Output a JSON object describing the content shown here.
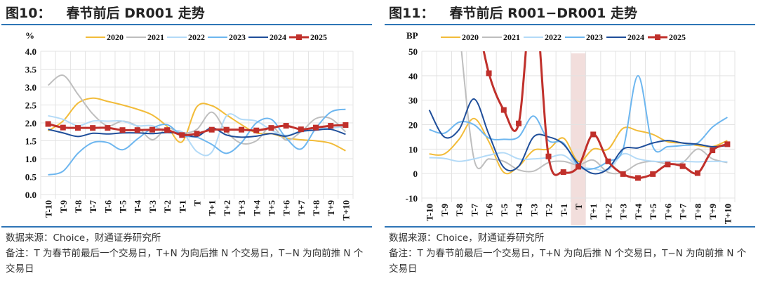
{
  "source": "数据来源：Choice，财通证券研究所",
  "note": "备注：T 为春节前最后一个交易日，T+N 为向后推 N 个交易日，T−N 为向前推 N 个交易日",
  "colors": {
    "2020": "#F2BC3A",
    "2021": "#BEBEBE",
    "2022": "#B3DAF7",
    "2023": "#6DB6EF",
    "2024": "#1F4E9A",
    "2025": "#C0302B",
    "rule": "#2E75B6",
    "highlight": "#F2DEDC"
  },
  "chart_data": [
    {
      "type": "line",
      "fig": "图10：",
      "title": "春节前后 DR001 走势",
      "ylabel": "%",
      "ylim": [
        0,
        4
      ],
      "yticks": [
        0,
        0.5,
        1,
        1.5,
        2,
        2.5,
        3,
        3.5,
        4
      ],
      "ytick_labels": [
        "0.0",
        "0.5",
        "1.0",
        "1.5",
        "2.0",
        "2.5",
        "3.0",
        "3.5",
        "4.0"
      ],
      "grid": true,
      "legend": "top",
      "categories": [
        "T-10",
        "T-9",
        "T-8",
        "T-7",
        "T-6",
        "T-5",
        "T-4",
        "T-3",
        "T-2",
        "T-1",
        "T",
        "T+1",
        "T+2",
        "T+3",
        "T+4",
        "T+5",
        "T+6",
        "T+7",
        "T+8",
        "T+9",
        "T+10"
      ],
      "series": [
        {
          "name": "2020",
          "values": [
            1.78,
            2.05,
            2.55,
            2.69,
            2.6,
            2.5,
            2.38,
            2.22,
            1.9,
            1.47,
            2.45,
            2.48,
            2.22,
            1.95,
            1.72,
            1.7,
            1.58,
            1.53,
            1.5,
            1.43,
            1.22
          ]
        },
        {
          "name": "2021",
          "values": [
            3.05,
            3.33,
            2.8,
            2.25,
            1.92,
            2.05,
            1.9,
            1.53,
            1.85,
            1.72,
            1.82,
            2.3,
            1.75,
            1.43,
            1.5,
            1.9,
            1.52,
            1.75,
            2.12,
            2.12,
            1.75
          ]
        },
        {
          "name": "2022",
          "values": [
            2.2,
            2.1,
            1.92,
            2.05,
            2.05,
            2.05,
            1.92,
            1.92,
            1.75,
            1.75,
            1.2,
            1.18,
            2.2,
            2.1,
            2.05,
            1.8,
            1.65,
            1.78,
            1.85,
            1.85,
            1.92
          ]
        },
        {
          "name": "2023",
          "values": [
            0.55,
            0.65,
            1.15,
            1.45,
            1.45,
            1.25,
            1.55,
            1.85,
            1.95,
            1.65,
            1.6,
            1.4,
            1.15,
            1.45,
            2.0,
            2.1,
            1.58,
            1.27,
            1.85,
            2.3,
            2.38
          ]
        },
        {
          "name": "2024",
          "values": [
            1.82,
            1.72,
            1.62,
            1.71,
            1.69,
            1.72,
            1.72,
            1.7,
            1.73,
            1.7,
            1.62,
            1.86,
            1.66,
            1.6,
            1.63,
            1.7,
            1.63,
            1.76,
            1.8,
            1.82,
            1.68
          ]
        },
        {
          "name": "2025",
          "markers": true,
          "values": [
            1.97,
            1.87,
            1.86,
            1.86,
            1.86,
            1.8,
            1.8,
            1.81,
            1.8,
            1.66,
            1.7,
            1.81,
            1.81,
            1.81,
            1.79,
            1.86,
            1.92,
            1.82,
            1.87,
            1.92,
            1.94
          ]
        }
      ]
    },
    {
      "type": "line",
      "fig": "图11：",
      "title": "春节前后 R001−DR001 走势",
      "ylabel": "BP",
      "ylim": [
        -10,
        50
      ],
      "yticks": [
        -10,
        0,
        10,
        20,
        30,
        40,
        50
      ],
      "ytick_labels": [
        "-10",
        "0",
        "10",
        "20",
        "30",
        "40",
        "50"
      ],
      "grid": true,
      "legend": "top",
      "highlight_category": "T",
      "categories": [
        "T-10",
        "T-9",
        "T-8",
        "T-7",
        "T-6",
        "T-5",
        "T-4",
        "T-3",
        "T-2",
        "T-1",
        "T",
        "T+1",
        "T+2",
        "T+3",
        "T+4",
        "T+5",
        "T+6",
        "T+7",
        "T+8",
        "T+9",
        "T+10"
      ],
      "series": [
        {
          "name": "2020",
          "values": [
            8,
            8,
            14,
            22.5,
            13,
            0.5,
            3,
            9.5,
            10,
            14.5,
            5,
            10,
            10,
            18.5,
            17.5,
            16,
            13,
            12.5,
            11.5,
            11,
            13.5
          ]
        },
        {
          "name": "2021",
          "values": [
            null,
            null,
            60,
            6,
            6,
            5,
            1.5,
            1,
            4.5,
            5,
            3.5,
            5.5,
            0.5,
            0.5,
            4,
            5,
            4,
            4.5,
            10,
            6,
            4.5
          ]
        },
        {
          "name": "2022",
          "values": [
            6.5,
            6.2,
            5,
            6,
            7.5,
            8.5,
            6,
            6,
            6.5,
            7.5,
            3,
            2,
            1.5,
            8,
            6,
            5,
            5,
            5,
            4.8,
            5,
            4.8
          ]
        },
        {
          "name": "2023",
          "values": [
            18,
            16.5,
            21,
            20,
            14.5,
            14,
            15,
            23.5,
            13.5,
            12.5,
            3,
            2,
            5,
            10,
            40,
            11,
            11,
            11.5,
            12.5,
            19,
            23
          ]
        },
        {
          "name": "2024",
          "values": [
            26,
            15,
            18,
            30.5,
            16,
            2.5,
            3,
            15,
            15,
            12,
            4,
            0,
            2,
            10,
            10.5,
            12.5,
            13.5,
            12.5,
            12,
            11,
            11.5
          ]
        },
        {
          "name": "2025",
          "markers": true,
          "values": [
            null,
            null,
            null,
            70,
            41,
            26,
            20.5,
            75,
            7,
            0.6,
            2.8,
            16,
            5,
            -0.2,
            -1.8,
            -0.2,
            3.7,
            3,
            0.2,
            9.5,
            12
          ]
        }
      ]
    }
  ]
}
